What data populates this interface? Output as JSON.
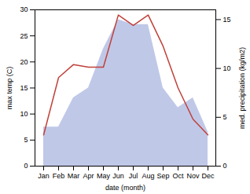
{
  "chart_data": {
    "type": "line",
    "categories": [
      "Jan",
      "Feb",
      "Mar",
      "Apr",
      "May",
      "Jun",
      "Jul",
      "Aug",
      "Sep",
      "Oct",
      "Nov",
      "Dec"
    ],
    "xlabel": "date (month)",
    "ylabel": "max temp (C)",
    "y2label": "med. precipitation (kg/m2)",
    "series": [
      {
        "type": "area",
        "axis": "y2",
        "color": "#c0c8e8",
        "values": [
          4,
          4,
          7,
          8,
          12,
          15,
          14.5,
          14.5,
          8,
          6,
          7,
          3.5
        ]
      },
      {
        "type": "line",
        "color": "#c0413a",
        "values": [
          6,
          17,
          19.5,
          19,
          19,
          29,
          27,
          29,
          23,
          15,
          9,
          6
        ]
      }
    ],
    "ylim": [
      0,
      30
    ],
    "yticks": [
      0,
      5,
      10,
      15,
      20,
      25,
      30
    ],
    "y2lim": [
      0,
      16
    ],
    "y2ticks": [
      0,
      5,
      10,
      15
    ],
    "grid": false
  }
}
